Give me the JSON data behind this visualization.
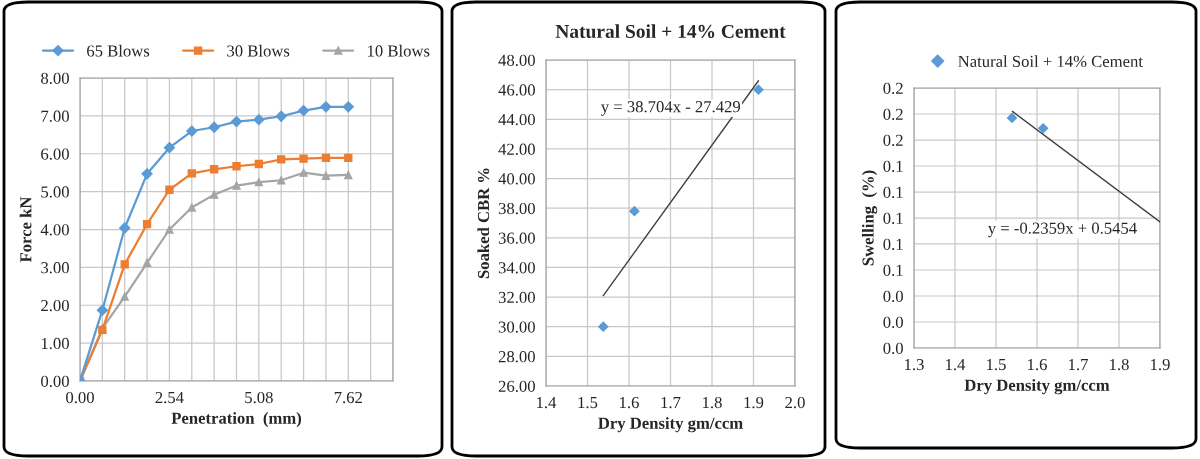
{
  "chart_data": [
    {
      "type": "line",
      "xlabel": "Penetration  (mm)",
      "ylabel": "Force kN",
      "legend": "top",
      "grid": true,
      "x": [
        0,
        0.635,
        1.27,
        1.905,
        2.54,
        3.175,
        3.81,
        4.445,
        5.08,
        5.715,
        6.35,
        6.985,
        7.62
      ],
      "xlim": [
        0,
        8.89
      ],
      "xticks": [
        {
          "value": 0,
          "label": "0.00"
        },
        {
          "value": 0.635,
          "label": null
        },
        {
          "value": 1.27,
          "label": null
        },
        {
          "value": 1.905,
          "label": null
        },
        {
          "value": 2.54,
          "label": "2.54"
        },
        {
          "value": 3.175,
          "label": null
        },
        {
          "value": 3.81,
          "label": null
        },
        {
          "value": 4.445,
          "label": null
        },
        {
          "value": 5.08,
          "label": "5.08"
        },
        {
          "value": 5.715,
          "label": null
        },
        {
          "value": 6.35,
          "label": null
        },
        {
          "value": 6.985,
          "label": null
        },
        {
          "value": 7.62,
          "label": "7.62"
        },
        {
          "value": 8.255,
          "label": null
        },
        {
          "value": 8.89,
          "label": null
        }
      ],
      "ylim": [
        0,
        8
      ],
      "yticks": [
        {
          "value": 0,
          "label": "0.00"
        },
        {
          "value": 1,
          "label": "1.00"
        },
        {
          "value": 2,
          "label": "2.00"
        },
        {
          "value": 3,
          "label": "3.00"
        },
        {
          "value": 4,
          "label": "4.00"
        },
        {
          "value": 5,
          "label": "5.00"
        },
        {
          "value": 6,
          "label": "6.00"
        },
        {
          "value": 7,
          "label": "7.00"
        },
        {
          "value": 8,
          "label": "8.00"
        }
      ],
      "series": [
        {
          "name": "65 Blows",
          "color": "#5b9bd5",
          "marker": "diamond",
          "values": [
            0,
            1.87,
            4.04,
            5.47,
            6.16,
            6.6,
            6.7,
            6.85,
            6.9,
            6.99,
            7.14,
            7.24,
            7.24
          ]
        },
        {
          "name": "30 Blows",
          "color": "#ed7d31",
          "marker": "square",
          "values": [
            0,
            1.35,
            3.08,
            4.14,
            5.05,
            5.48,
            5.59,
            5.67,
            5.73,
            5.85,
            5.87,
            5.89,
            5.89
          ]
        },
        {
          "name": "10 Blows",
          "color": "#a5a5a5",
          "marker": "triangle",
          "values": [
            0,
            1.39,
            2.23,
            3.12,
            4.0,
            4.58,
            4.92,
            5.16,
            5.25,
            5.3,
            5.5,
            5.42,
            5.44
          ]
        }
      ]
    },
    {
      "type": "scatter",
      "title": "Natural Soil + 14% Cement",
      "xlabel": "Dry Density gm/ccm",
      "ylabel": "Soaked CBR %",
      "grid": true,
      "xlim": [
        1.4,
        2.0
      ],
      "xticks": [
        {
          "value": 1.4,
          "label": "1.4"
        },
        {
          "value": 1.5,
          "label": "1.5"
        },
        {
          "value": 1.6,
          "label": "1.6"
        },
        {
          "value": 1.7,
          "label": "1.7"
        },
        {
          "value": 1.8,
          "label": "1.8"
        },
        {
          "value": 1.9,
          "label": "1.9"
        },
        {
          "value": 2.0,
          "label": "2.0"
        }
      ],
      "ylim": [
        26,
        48
      ],
      "yticks": [
        {
          "value": 26,
          "label": "26.00"
        },
        {
          "value": 28,
          "label": "28.00"
        },
        {
          "value": 30,
          "label": "30.00"
        },
        {
          "value": 32,
          "label": "32.00"
        },
        {
          "value": 34,
          "label": "34.00"
        },
        {
          "value": 36,
          "label": "36.00"
        },
        {
          "value": 38,
          "label": "38.00"
        },
        {
          "value": 40,
          "label": "40.00"
        },
        {
          "value": 42,
          "label": "42.00"
        },
        {
          "value": 44,
          "label": "44.00"
        },
        {
          "value": 46,
          "label": "46.00"
        },
        {
          "value": 48,
          "label": "48.00"
        }
      ],
      "annotations": [
        "y = 38.704x - 27.429"
      ],
      "series": [
        {
          "type": "scatter",
          "color": "#5b9bd5",
          "marker": "diamond",
          "x": [
            1.538,
            1.613,
            1.912
          ],
          "values": [
            30.0,
            37.8,
            46.0
          ]
        },
        {
          "type": "line",
          "color": "#404040",
          "marker": "none",
          "x": [
            1.538,
            1.912
          ],
          "values": [
            32.1,
            46.6
          ]
        }
      ]
    },
    {
      "type": "scatter",
      "xlabel": "Dry Density gm/ccm",
      "ylabel": "Swelling  (%)",
      "grid": true,
      "legend": "top",
      "xlim": [
        1.3,
        1.9
      ],
      "xticks": [
        {
          "value": 1.3,
          "label": "1.3"
        },
        {
          "value": 1.4,
          "label": "1.4"
        },
        {
          "value": 1.5,
          "label": "1.5"
        },
        {
          "value": 1.6,
          "label": "1.6"
        },
        {
          "value": 1.7,
          "label": "1.7"
        },
        {
          "value": 1.8,
          "label": "1.8"
        },
        {
          "value": 1.9,
          "label": "1.9"
        }
      ],
      "ylim": [
        0,
        0.2
      ],
      "yticks": [
        {
          "value": 0,
          "label": "0.0"
        },
        {
          "value": 0.02,
          "label": "0.0"
        },
        {
          "value": 0.04,
          "label": "0.0"
        },
        {
          "value": 0.06,
          "label": "0.1"
        },
        {
          "value": 0.08,
          "label": "0.1"
        },
        {
          "value": 0.1,
          "label": "0.1"
        },
        {
          "value": 0.12,
          "label": "0.1"
        },
        {
          "value": 0.14,
          "label": "0.1"
        },
        {
          "value": 0.16,
          "label": "0.2"
        },
        {
          "value": 0.18,
          "label": "0.2"
        },
        {
          "value": 0.2,
          "label": "0.2"
        }
      ],
      "annotations": [
        "y = -0.2359x + 0.5454"
      ],
      "series": [
        {
          "type": "scatter",
          "name": "Natural Soil + 14% Cement",
          "color": "#5b9bd5",
          "marker": "diamond",
          "x": [
            1.539,
            1.615
          ],
          "values": [
            0.177,
            0.169
          ]
        },
        {
          "type": "line",
          "color": "#404040",
          "marker": "none",
          "x": [
            1.54,
            1.9
          ],
          "values": [
            0.182,
            0.097
          ]
        }
      ]
    }
  ]
}
